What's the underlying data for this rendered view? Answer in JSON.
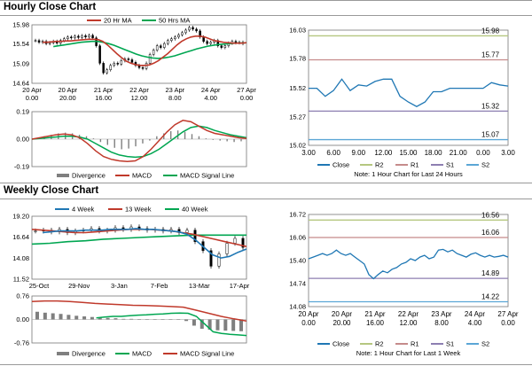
{
  "hourly": {
    "title": "Hourly Close Chart",
    "price": {
      "legend": [
        "20 Hr MA",
        "50 Hrs MA"
      ],
      "colors": {
        "close": "#000000",
        "ma20": "#c0392b",
        "ma50": "#00a651"
      },
      "ylim": [
        14.64,
        15.98
      ],
      "yticks": [
        "15.98",
        "15.54",
        "15.09",
        "14.64"
      ],
      "ytick_values": [
        15.98,
        15.54,
        15.09,
        14.64
      ],
      "xticks": [
        [
          "20 Apr",
          "0.00"
        ],
        [
          "20 Apr",
          "20.00"
        ],
        [
          "21 Apr",
          "16.00"
        ],
        [
          "22 Apr",
          "12.00"
        ],
        [
          "23 Apr",
          "8.00"
        ],
        [
          "24 Apr",
          "4.00"
        ],
        [
          "27 Apr",
          "0.00"
        ]
      ],
      "close": [
        15.62,
        15.58,
        15.6,
        15.55,
        15.57,
        15.6,
        15.56,
        15.62,
        15.66,
        15.7,
        15.68,
        15.72,
        15.69,
        15.73,
        15.7,
        15.74,
        15.68,
        15.5,
        15.1,
        14.88,
        14.95,
        15.05,
        15.1,
        15.08,
        15.16,
        15.2,
        15.18,
        15.12,
        15.05,
        15.0,
        14.98,
        15.1,
        15.3,
        15.4,
        15.5,
        15.46,
        15.55,
        15.62,
        15.66,
        15.7,
        15.75,
        15.8,
        15.86,
        15.92,
        15.88,
        15.84,
        15.7,
        15.6,
        15.55,
        15.58,
        15.62,
        15.5,
        15.46,
        15.5,
        15.56,
        15.6,
        15.57,
        15.58,
        15.55
      ],
      "ma20": [
        15.58,
        15.58,
        15.59,
        15.6,
        15.6,
        15.61,
        15.61,
        15.62,
        15.63,
        15.64,
        15.65,
        15.65,
        15.64,
        15.6,
        15.52,
        15.42,
        15.32,
        15.23,
        15.15,
        15.1,
        15.07,
        15.05,
        15.05,
        15.06,
        15.1,
        15.16,
        15.24,
        15.32,
        15.42,
        15.52,
        15.6,
        15.66,
        15.7,
        15.72,
        15.72,
        15.7,
        15.66,
        15.62,
        15.6,
        15.58,
        15.57,
        15.56,
        15.56,
        15.56,
        15.57
      ],
      "ma50": [
        15.48,
        15.5,
        15.52,
        15.54,
        15.56,
        15.58,
        15.59,
        15.6,
        15.6,
        15.58,
        15.55,
        15.51,
        15.46,
        15.41,
        15.36,
        15.31,
        15.27,
        15.24,
        15.22,
        15.21,
        15.22,
        15.24,
        15.27,
        15.31,
        15.35,
        15.39,
        15.43,
        15.46,
        15.49,
        15.51,
        15.53,
        15.54,
        15.55,
        15.56,
        15.56,
        15.57
      ]
    },
    "macd": {
      "legend": [
        "Divergence",
        "MACD",
        "MACD Signal Line"
      ],
      "colors": {
        "macd": "#c0392b",
        "signal": "#00a651",
        "hist": "#7f7f7f"
      },
      "ylim": [
        -0.19,
        0.19
      ],
      "yticks": [
        "0.19",
        "0.00",
        "-0.19"
      ],
      "ytick_values": [
        0.19,
        0.0,
        -0.19
      ],
      "macd": [
        0.0,
        0.01,
        0.02,
        0.03,
        0.035,
        0.03,
        0.01,
        -0.03,
        -0.08,
        -0.12,
        -0.14,
        -0.15,
        -0.155,
        -0.15,
        -0.12,
        -0.07,
        -0.01,
        0.05,
        0.1,
        0.13,
        0.12,
        0.09,
        0.06,
        0.04,
        0.03,
        0.02,
        0.01,
        0.005
      ],
      "signal": [
        0.0,
        0.005,
        0.01,
        0.015,
        0.02,
        0.02,
        0.015,
        0.0,
        -0.03,
        -0.06,
        -0.09,
        -0.11,
        -0.12,
        -0.125,
        -0.12,
        -0.1,
        -0.07,
        -0.03,
        0.01,
        0.05,
        0.08,
        0.09,
        0.08,
        0.06,
        0.045,
        0.03,
        0.02,
        0.01
      ],
      "hist": [
        0.0,
        0.02,
        0.03,
        0.04,
        0.045,
        0.04,
        0.03,
        0.02,
        0.005,
        -0.02,
        -0.04,
        -0.06,
        -0.07,
        -0.065,
        -0.05,
        -0.03,
        -0.01,
        0.02,
        0.04,
        0.055,
        0.06,
        0.05,
        0.035,
        0.02,
        0.005,
        -0.005,
        -0.01,
        -0.015,
        -0.02,
        -0.015
      ]
    },
    "side": {
      "ylim": [
        15.02,
        16.03
      ],
      "yticks": [
        "16.03",
        "15.78",
        "15.52",
        "15.27",
        "15.02"
      ],
      "ytick_values": [
        16.03,
        15.78,
        15.52,
        15.27,
        15.02
      ],
      "xticks": [
        "3.00",
        "6.00",
        "9.00",
        "12.00",
        "15.00",
        "18.00",
        "21.00",
        "0.00",
        "3.00"
      ],
      "levels": [
        {
          "label": "15.98",
          "value": 15.98,
          "color": "#b5c780"
        },
        {
          "label": "15.77",
          "value": 15.77,
          "color": "#c58b8b"
        },
        {
          "label": "15.32",
          "value": 15.32,
          "color": "#8d7fb1"
        },
        {
          "label": "15.07",
          "value": 15.07,
          "color": "#5ba6d6"
        }
      ],
      "close": [
        15.52,
        15.52,
        15.45,
        15.5,
        15.6,
        15.5,
        15.55,
        15.54,
        15.58,
        15.6,
        15.6,
        15.45,
        15.4,
        15.36,
        15.4,
        15.49,
        15.49,
        15.52,
        15.52,
        15.52,
        15.52,
        15.52,
        15.57,
        15.55,
        15.54
      ],
      "close_color": "#1f77b4",
      "legend": [
        "Close",
        "R2",
        "R1",
        "S1",
        "S2"
      ],
      "note": "Note: 1 Hour Chart for Last 24 Hours"
    }
  },
  "weekly": {
    "title": "Weekly Close Chart",
    "price": {
      "legend": [
        "4 Week",
        "13 Week",
        "40 Week"
      ],
      "colors": {
        "ma4": "#1f77b4",
        "ma13": "#c0392b",
        "ma40": "#00a651",
        "ohlc": "#000000"
      },
      "ylim": [
        11.52,
        19.2
      ],
      "yticks": [
        "19.20",
        "16.64",
        "14.08",
        "11.52"
      ],
      "ytick_values": [
        19.2,
        16.64,
        14.08,
        11.52
      ],
      "xticks": [
        "25-Oct",
        "29-Nov",
        "3-Jan",
        "7-Feb",
        "13-Mar",
        "17-Apr"
      ],
      "ohlc_close": [
        17.4,
        17.5,
        17.3,
        17.6,
        17.2,
        17.4,
        17.5,
        17.7,
        17.4,
        17.5,
        17.8,
        17.6,
        17.9,
        17.7,
        17.5,
        17.6,
        17.4,
        17.6,
        17.2,
        17.5,
        16.1,
        15.0,
        13.1,
        14.6,
        15.9,
        16.5,
        15.4
      ],
      "ma4": [
        17.2,
        17.3,
        17.4,
        17.4,
        17.4,
        17.5,
        17.5,
        17.5,
        17.6,
        17.6,
        17.6,
        17.7,
        17.6,
        17.6,
        17.5,
        17.4,
        17.3,
        17.0,
        16.3,
        15.4,
        14.5,
        14.1,
        14.3,
        14.8,
        15.2
      ],
      "ma13": [
        17.6,
        17.5,
        17.4,
        17.3,
        17.2,
        17.2,
        17.3,
        17.4,
        17.5,
        17.6,
        17.6,
        17.6,
        17.5,
        17.4,
        17.2,
        17.0,
        16.7,
        16.4,
        16.1,
        15.8,
        15.5
      ],
      "ma40": [
        15.8,
        15.9,
        16.1,
        16.2,
        16.4,
        16.5,
        16.6,
        16.7,
        16.8,
        16.9,
        16.9,
        16.9,
        16.9
      ]
    },
    "macd": {
      "legend": [
        "Divergence",
        "MACD",
        "MACD Signal Line"
      ],
      "colors": {
        "macd": "#c0392b",
        "signal": "#00a651",
        "hist": "#7f7f7f"
      },
      "ylim": [
        -0.76,
        0.76
      ],
      "yticks": [
        "0.76",
        "0.00",
        "-0.76"
      ],
      "ytick_values": [
        0.76,
        0.0,
        -0.76
      ],
      "macd": [
        0.05,
        0.08,
        0.1,
        0.1,
        0.12,
        0.14,
        0.15,
        0.17,
        0.18,
        0.2,
        0.21,
        0.2,
        0.1,
        -0.15,
        -0.4,
        -0.45,
        -0.48,
        -0.5,
        -0.52
      ],
      "signal": [
        0.58,
        0.6,
        0.6,
        0.58,
        0.55,
        0.52,
        0.5,
        0.48,
        0.46,
        0.45,
        0.44,
        0.42,
        0.4,
        0.3,
        0.2,
        0.1,
        0.02,
        -0.05
      ],
      "hist": [
        0.25,
        0.22,
        0.2,
        0.18,
        0.15,
        0.12,
        0.1,
        0.08,
        0.06,
        0.05,
        0.04,
        0.02,
        0.02,
        0.01,
        0.0,
        0.0,
        0.0,
        0.0,
        0.0,
        -0.05,
        -0.2,
        -0.3,
        -0.33,
        -0.35,
        -0.36,
        -0.37,
        -0.38
      ]
    },
    "side": {
      "ylim": [
        14.08,
        16.72
      ],
      "yticks": [
        "16.72",
        "16.06",
        "15.40",
        "14.74",
        "14.08"
      ],
      "ytick_values": [
        16.72,
        16.06,
        15.4,
        14.74,
        14.08
      ],
      "xticks": [
        [
          "20 Apr",
          "0.00"
        ],
        [
          "20 Apr",
          "20.00"
        ],
        [
          "21 Apr",
          "16.00"
        ],
        [
          "22 Apr",
          "12.00"
        ],
        [
          "23 Apr",
          "8.00"
        ],
        [
          "24 Apr",
          "4.00"
        ],
        [
          "27 Apr",
          "0.00"
        ]
      ],
      "levels": [
        {
          "label": "16.56",
          "value": 16.56,
          "color": "#b5c780"
        },
        {
          "label": "16.06",
          "value": 16.06,
          "color": "#c58b8b"
        },
        {
          "label": "14.89",
          "value": 14.89,
          "color": "#8d7fb1"
        },
        {
          "label": "14.22",
          "value": 14.22,
          "color": "#5ba6d6"
        }
      ],
      "close": [
        15.45,
        15.5,
        15.55,
        15.6,
        15.55,
        15.6,
        15.7,
        15.6,
        15.55,
        15.6,
        15.5,
        15.4,
        15.3,
        15.0,
        14.88,
        15.0,
        15.1,
        15.05,
        15.15,
        15.2,
        15.3,
        15.35,
        15.45,
        15.4,
        15.5,
        15.55,
        15.45,
        15.5,
        15.7,
        15.72,
        15.65,
        15.7,
        15.6,
        15.55,
        15.5,
        15.58,
        15.62,
        15.55,
        15.5,
        15.55,
        15.5,
        15.52,
        15.55,
        15.5
      ],
      "close_color": "#1f77b4",
      "legend": [
        "Close",
        "R2",
        "R1",
        "S1",
        "S2"
      ],
      "note": "Note: 1 Hour Chart for Last 1 Week"
    }
  },
  "chart_data": [
    {
      "type": "line",
      "title": "Hourly Close Chart",
      "series": [
        {
          "name": "20 Hr MA"
        },
        {
          "name": "50 Hrs MA"
        }
      ],
      "ylim": [
        14.64,
        15.98
      ],
      "grid": false
    },
    {
      "type": "bar",
      "series": [
        {
          "name": "Divergence"
        },
        {
          "name": "MACD"
        },
        {
          "name": "MACD Signal Line"
        }
      ],
      "ylim": [
        -0.19,
        0.19
      ]
    },
    {
      "type": "line",
      "series": [
        {
          "name": "Close"
        },
        {
          "name": "R2",
          "value": 15.98
        },
        {
          "name": "R1",
          "value": 15.77
        },
        {
          "name": "S1",
          "value": 15.32
        },
        {
          "name": "S2",
          "value": 15.07
        }
      ],
      "ylim": [
        15.02,
        16.03
      ]
    },
    {
      "type": "line",
      "title": "Weekly Close Chart",
      "series": [
        {
          "name": "4 Week"
        },
        {
          "name": "13 Week"
        },
        {
          "name": "40 Week"
        }
      ],
      "ylim": [
        11.52,
        19.2
      ]
    },
    {
      "type": "bar",
      "series": [
        {
          "name": "Divergence"
        },
        {
          "name": "MACD"
        },
        {
          "name": "MACD Signal Line"
        }
      ],
      "ylim": [
        -0.76,
        0.76
      ]
    },
    {
      "type": "line",
      "series": [
        {
          "name": "Close"
        },
        {
          "name": "R2",
          "value": 16.56
        },
        {
          "name": "R1",
          "value": 16.06
        },
        {
          "name": "S1",
          "value": 14.89
        },
        {
          "name": "S2",
          "value": 14.22
        }
      ],
      "ylim": [
        14.08,
        16.72
      ]
    }
  ]
}
